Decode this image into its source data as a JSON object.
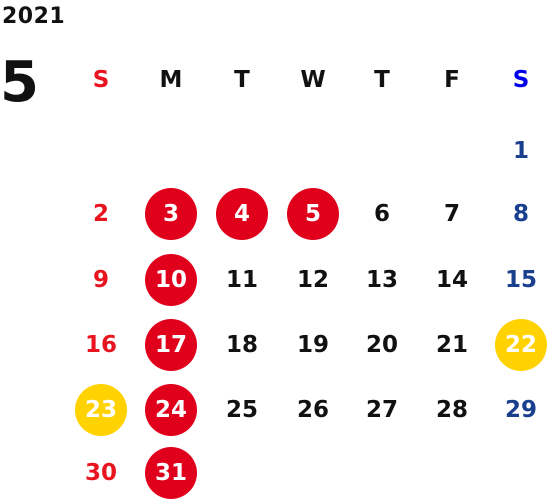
{
  "year": "2021",
  "month": "5",
  "weekdays": [
    "S",
    "M",
    "T",
    "W",
    "T",
    "F",
    "S"
  ],
  "weeks": [
    [
      "",
      "",
      "",
      "",
      "",
      "",
      "1"
    ],
    [
      "2",
      "3",
      "4",
      "5",
      "6",
      "7",
      "8"
    ],
    [
      "9",
      "10",
      "11",
      "12",
      "13",
      "14",
      "15"
    ],
    [
      "16",
      "17",
      "18",
      "19",
      "20",
      "21",
      "22"
    ],
    [
      "23",
      "24",
      "25",
      "26",
      "27",
      "28",
      "29"
    ],
    [
      "30",
      "31",
      "",
      "",
      "",
      "",
      ""
    ]
  ],
  "highlights": {
    "red": [
      "3",
      "4",
      "5",
      "10",
      "17",
      "24",
      "31"
    ],
    "yellow": [
      "22",
      "23"
    ]
  },
  "colors": {
    "sunday_text": "#e8141f",
    "saturday_text": "#1a3f8f",
    "saturday_header": "#0000ee",
    "weekday_text": "#111111",
    "holiday_red": "#e0001b",
    "holiday_yellow": "#ffd200"
  }
}
